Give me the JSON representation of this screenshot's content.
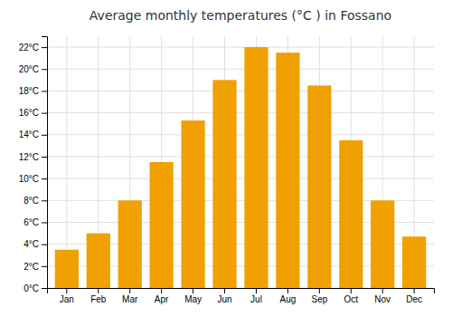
{
  "chart_data": {
    "type": "bar",
    "title": "Average monthly temperatures (°C ) in Fossano",
    "categories": [
      "Jan",
      "Feb",
      "Mar",
      "Apr",
      "May",
      "Jun",
      "Jul",
      "Aug",
      "Sep",
      "Oct",
      "Nov",
      "Dec"
    ],
    "values": [
      3.5,
      5.0,
      8.0,
      11.5,
      15.3,
      19.0,
      22.0,
      21.5,
      18.5,
      13.5,
      8.0,
      4.7
    ],
    "color": "#F0A000",
    "ylim": [
      0,
      23.0
    ],
    "yticks": [
      {
        "value": 0,
        "label": "0°C"
      },
      {
        "value": 2,
        "label": "2°C"
      },
      {
        "value": 4,
        "label": "4°C"
      },
      {
        "value": 6,
        "label": "6°C"
      },
      {
        "value": 8,
        "label": "8°C"
      },
      {
        "value": 10,
        "label": "10°C"
      },
      {
        "value": 12,
        "label": "12°C"
      },
      {
        "value": 14,
        "label": "14°C"
      },
      {
        "value": 16,
        "label": "16°C"
      },
      {
        "value": 18,
        "label": "18°C"
      },
      {
        "value": 20,
        "label": "20°C"
      },
      {
        "value": 22,
        "label": "22°C"
      }
    ],
    "grid": true
  }
}
